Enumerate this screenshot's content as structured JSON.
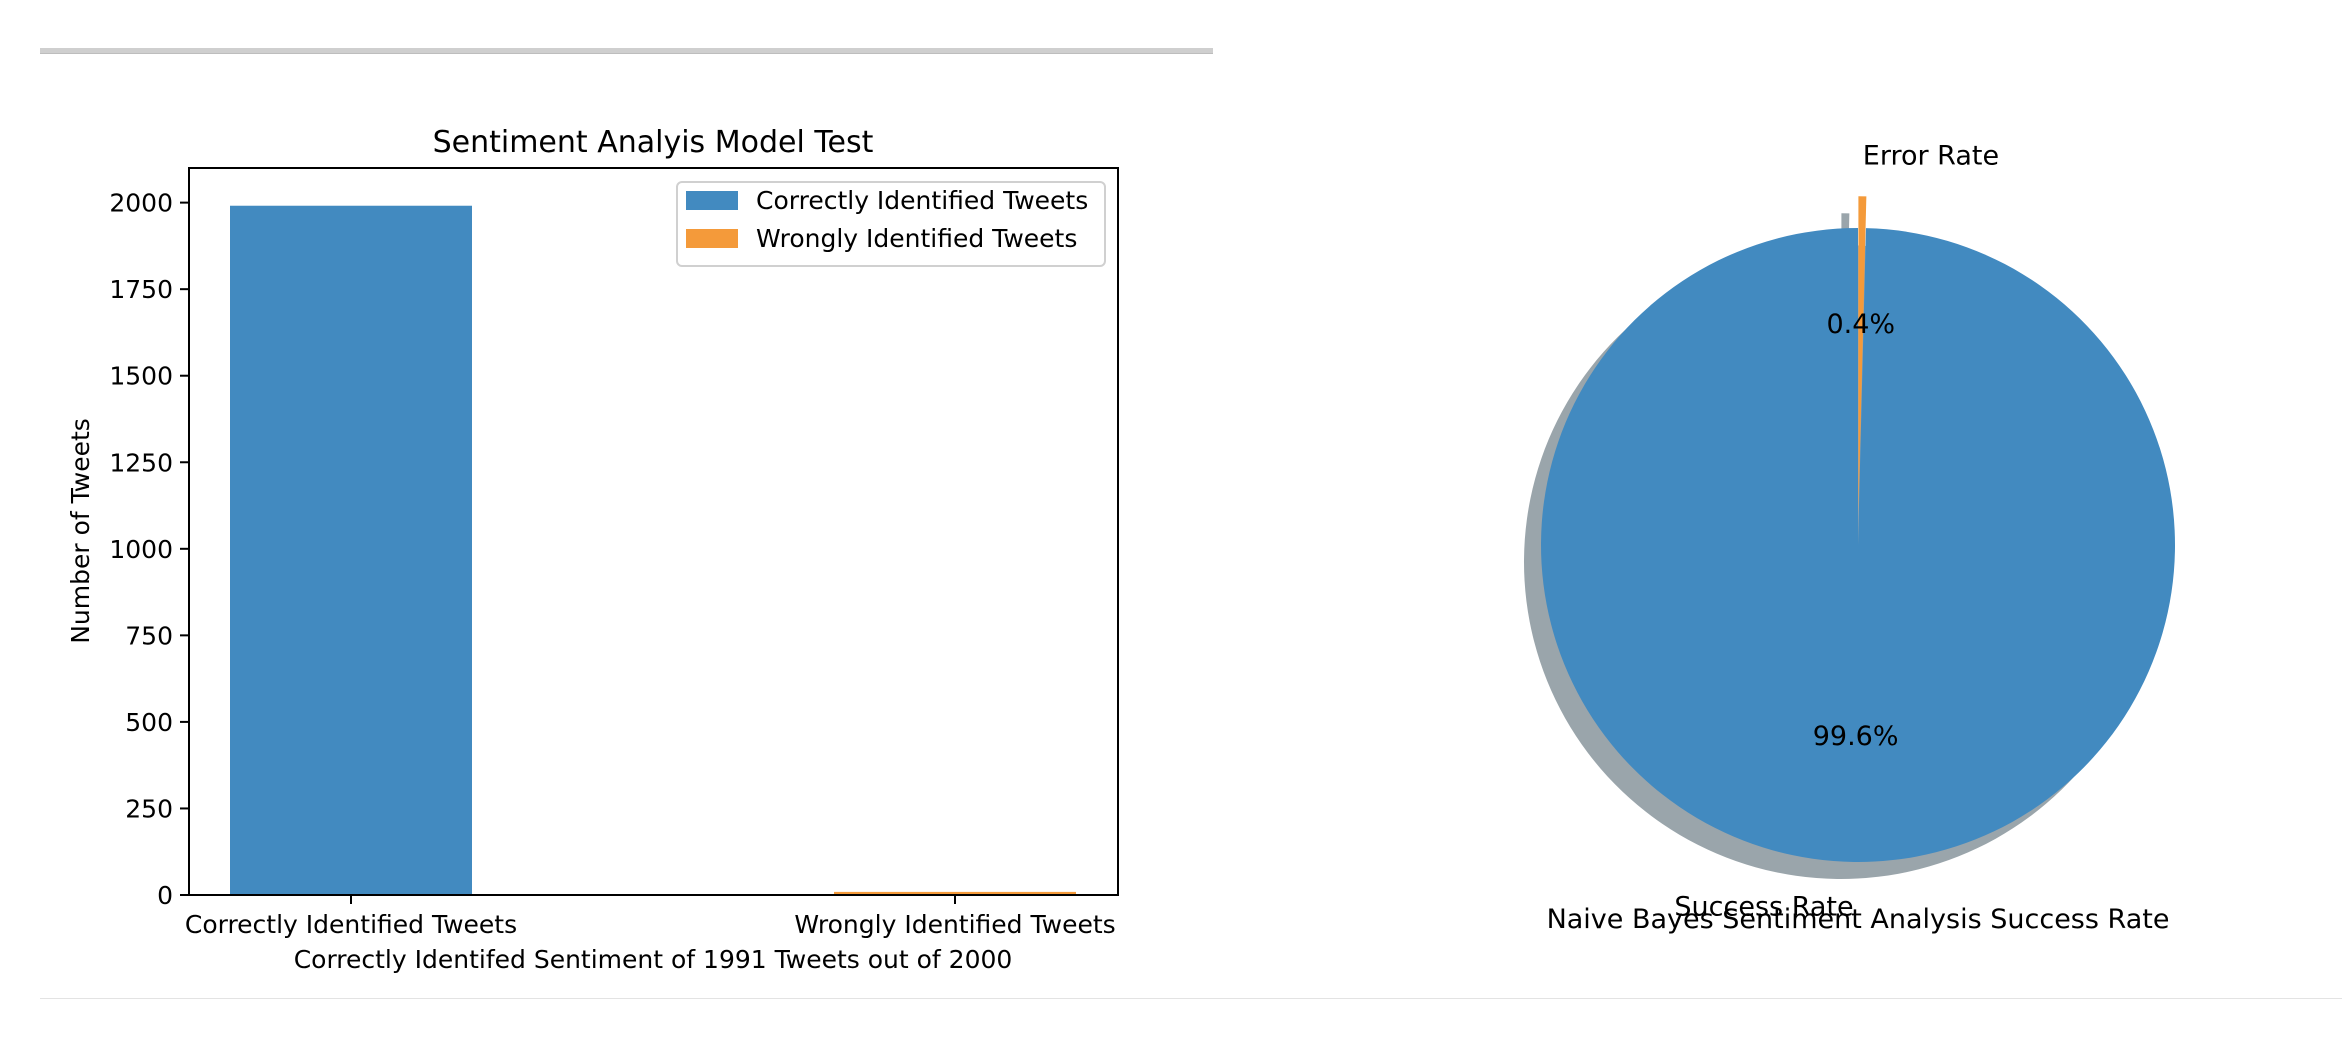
{
  "chart_data": [
    {
      "type": "bar",
      "title": "Sentiment Analyis Model Test",
      "xlabel": "Correctly Identifed Sentiment of 1991 Tweets out of 2000",
      "ylabel": "Number of Tweets",
      "categories": [
        "Correctly Identified Tweets",
        "Wrongly Identified Tweets"
      ],
      "series": [
        {
          "name": "Correctly Identified Tweets",
          "color": "#428ac0",
          "values": [
            1991,
            0
          ]
        },
        {
          "name": "Wrongly Identified Tweets",
          "color": "#f49a3a",
          "values": [
            0,
            9
          ]
        }
      ],
      "ylim": [
        0,
        2100
      ],
      "yticks": [
        0,
        250,
        500,
        750,
        1000,
        1250,
        1500,
        1750,
        2000
      ],
      "legend": "upper-right",
      "grid": false
    },
    {
      "type": "pie",
      "title": "Naive Bayes Sentiment Analysis Success Rate",
      "slices": [
        {
          "label": "Success Rate",
          "value": 99.6,
          "pct_label": "99.6%",
          "color": "#428ac0"
        },
        {
          "label": "Error Rate",
          "value": 0.4,
          "pct_label": "0.4%",
          "color": "#f49a3a"
        }
      ],
      "shadow": true,
      "explode": "Error Rate"
    }
  ]
}
